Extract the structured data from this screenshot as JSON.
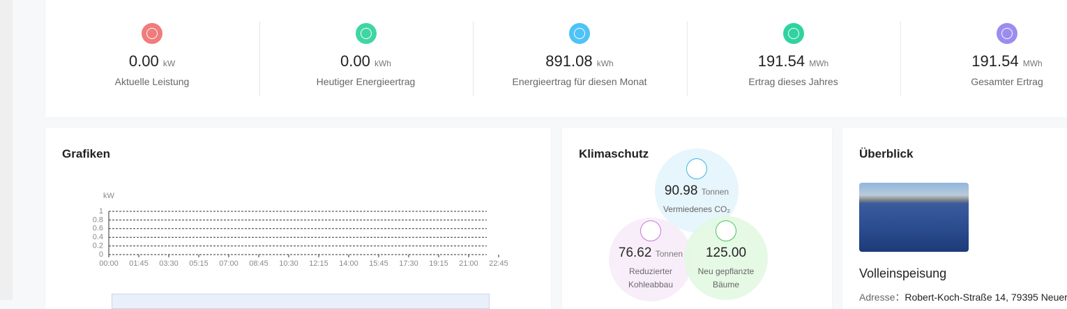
{
  "stats": [
    {
      "value": "0.00",
      "unit": "kW",
      "label": "Aktuelle Leistung",
      "color": "#f07c7c"
    },
    {
      "value": "0.00",
      "unit": "kWh",
      "label": "Heutiger Energieertrag",
      "color": "#3fd6a4"
    },
    {
      "value": "891.08",
      "unit": "kWh",
      "label": "Energieertrag für diesen Monat",
      "color": "#4fc3f7"
    },
    {
      "value": "191.54",
      "unit": "MWh",
      "label": "Ertrag dieses Jahres",
      "color": "#2fd3a0"
    },
    {
      "value": "191.54",
      "unit": "MWh",
      "label": "Gesamter Ertrag",
      "color": "#9b8cf0"
    }
  ],
  "grafiken": {
    "title": "Grafiken",
    "chart": {
      "type": "line",
      "ylabel": "kW",
      "categories": [
        "00:00",
        "01:45",
        "03:30",
        "05:15",
        "07:00",
        "08:45",
        "10:30",
        "12:15",
        "14:00",
        "15:45",
        "17:30",
        "19:15",
        "21:00",
        "22:45"
      ],
      "ylim": [
        0,
        1
      ],
      "yticks": [
        0,
        0.2,
        0.4,
        0.6,
        0.8,
        1
      ],
      "grid": true
    }
  },
  "klimaschutz": {
    "title": "Klimaschutz",
    "items": [
      {
        "value": "90.98",
        "unit": "Tonnen",
        "label": "Vermiedenes CO₂"
      },
      {
        "value": "76.62",
        "unit": "Tonnen",
        "label": "Reduzierter Kohleabbau"
      },
      {
        "value": "125.00",
        "label": "Neu gepflanzte Bäume"
      }
    ]
  },
  "ueberblick": {
    "title": "Überblick",
    "name": "Volleinspeisung",
    "address_label": "Adresse",
    "address": "Robert-Koch-Straße 14, 79395 Neuer"
  }
}
